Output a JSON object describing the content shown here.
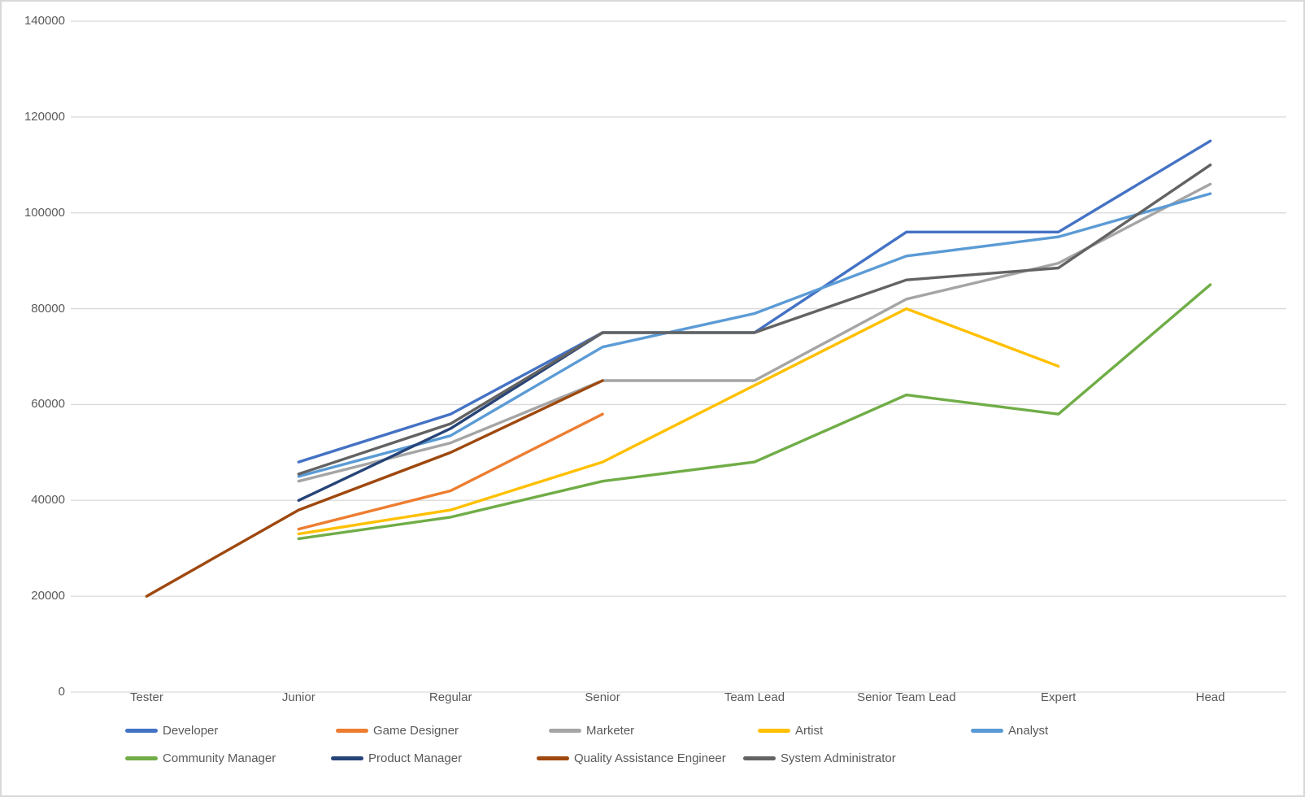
{
  "chart_data": {
    "type": "line",
    "title": "",
    "categories": [
      "Tester",
      "Junior",
      "Regular",
      "Senior",
      "Team Lead",
      "Senior Team Lead",
      "Expert",
      "Head"
    ],
    "series": [
      {
        "name": "Developer",
        "color": "#4472C4",
        "values": [
          null,
          48000,
          58000,
          75000,
          75000,
          96000,
          96000,
          115000
        ]
      },
      {
        "name": "Game Designer",
        "color": "#ED7D31",
        "values": [
          null,
          34000,
          42000,
          58000,
          null,
          null,
          null,
          null
        ]
      },
      {
        "name": "Marketer",
        "color": "#A5A5A5",
        "values": [
          null,
          44000,
          52000,
          65000,
          65000,
          82000,
          89500,
          106000
        ]
      },
      {
        "name": "Artist",
        "color": "#FFC000",
        "values": [
          null,
          33000,
          38000,
          48000,
          64000,
          80000,
          68000,
          null
        ]
      },
      {
        "name": "Analyst",
        "color": "#5B9BD5",
        "values": [
          null,
          45000,
          53500,
          72000,
          79000,
          91000,
          95000,
          104000
        ]
      },
      {
        "name": "Community Manager",
        "color": "#70AD47",
        "values": [
          null,
          32000,
          36500,
          44000,
          48000,
          62000,
          58000,
          85000
        ]
      },
      {
        "name": "Product Manager",
        "color": "#264478",
        "values": [
          null,
          40000,
          55000,
          75000,
          null,
          null,
          null,
          null
        ]
      },
      {
        "name": "Quality Assistance Engineer",
        "color": "#9E480E",
        "values": [
          20000,
          38000,
          50000,
          65000,
          null,
          null,
          null,
          null
        ]
      },
      {
        "name": "System Administrator",
        "color": "#636363",
        "values": [
          null,
          45500,
          56000,
          75000,
          75000,
          86000,
          88500,
          110000
        ]
      }
    ],
    "ylim": [
      0,
      140000
    ],
    "ytick_interval": 20000,
    "yticks": [
      "0",
      "20000",
      "40000",
      "60000",
      "80000",
      "100000",
      "120000",
      "140000"
    ],
    "xlabel": "",
    "ylabel": "",
    "grid": true,
    "legend_position": "bottom",
    "legend_rows": [
      [
        "Developer",
        "Game Designer",
        "Marketer",
        "Artist",
        "Analyst"
      ],
      [
        "Community Manager",
        "Product Manager",
        "Quality Assistance Engineer",
        "System Administrator"
      ]
    ]
  },
  "colors": {
    "background": "#FFFFFF",
    "gridline": "#D9D9D9",
    "axis_text": "#595959",
    "frame_border": "#D8D8D8"
  }
}
